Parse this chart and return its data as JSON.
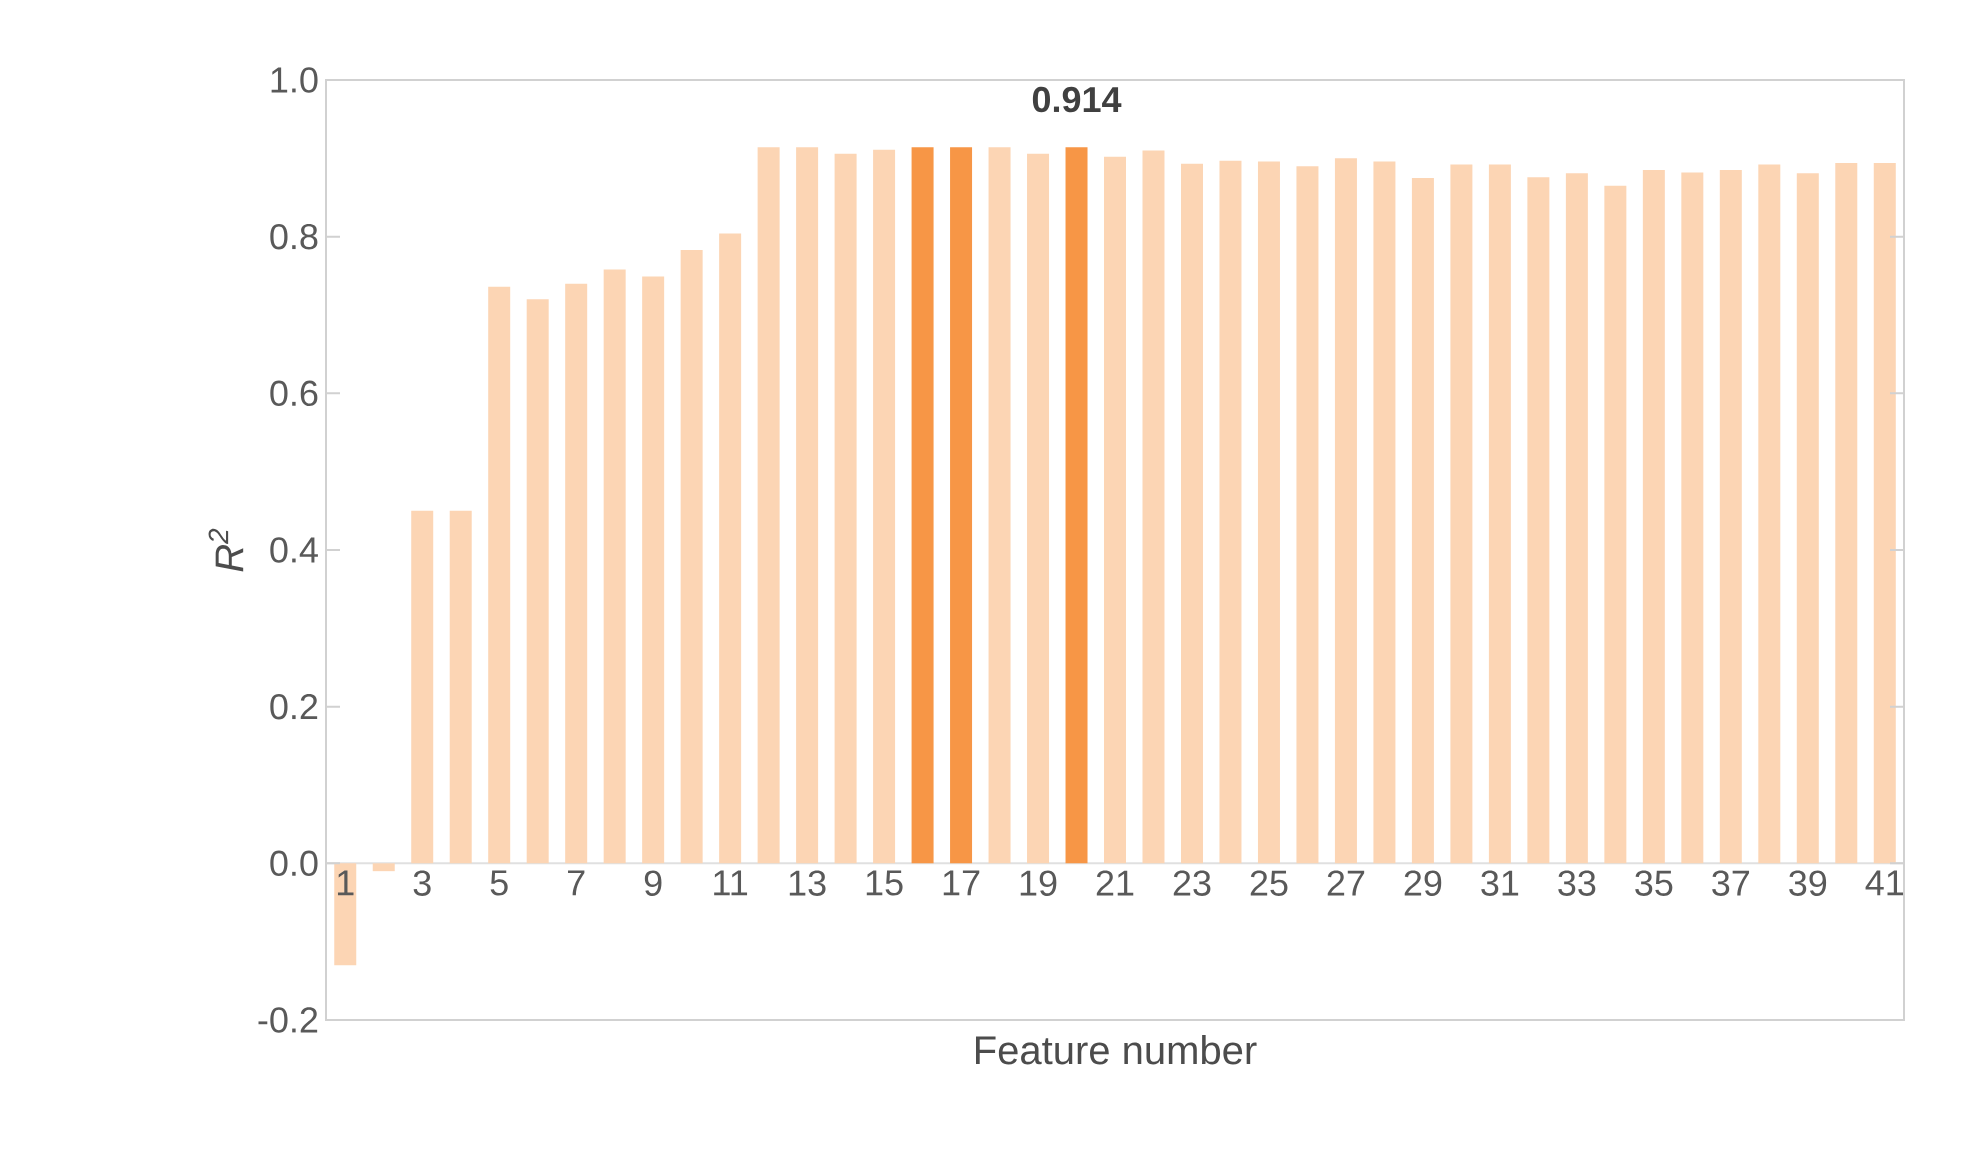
{
  "chart_data": {
    "type": "bar",
    "xlabel": "Feature number",
    "ylabel": "R$^{2}$",
    "categories": [
      "1",
      null,
      "3",
      null,
      "5",
      null,
      "7",
      null,
      "9",
      null,
      "11",
      null,
      "13",
      null,
      "15",
      null,
      "17",
      null,
      "19",
      null,
      "21",
      null,
      "23",
      null,
      "25",
      null,
      "27",
      null,
      "29",
      null,
      "31",
      null,
      "33",
      null,
      "35",
      null,
      "37",
      null,
      "39",
      null,
      "41"
    ],
    "values": [
      -0.13,
      -0.01,
      0.45,
      0.45,
      0.736,
      0.72,
      0.74,
      0.758,
      0.749,
      0.783,
      0.804,
      0.914,
      0.914,
      0.906,
      0.911,
      0.914,
      0.914,
      0.914,
      0.906,
      0.914,
      0.902,
      0.91,
      0.893,
      0.897,
      0.896,
      0.89,
      0.9,
      0.896,
      0.875,
      0.892,
      0.892,
      0.876,
      0.881,
      0.865,
      0.885,
      0.882,
      0.885,
      0.892,
      0.881,
      0.894,
      0.894
    ],
    "colors": [
      "#fcd5b4",
      "#fcd5b4",
      "#fcd5b4",
      "#fcd5b4",
      "#fcd5b4",
      "#fcd5b4",
      "#fcd5b4",
      "#fcd5b4",
      "#fcd5b4",
      "#fcd5b4",
      "#fcd5b4",
      "#fcd5b4",
      "#fcd5b4",
      "#fcd5b4",
      "#fcd5b4",
      "#f79646",
      "#f79646",
      "#fcd5b4",
      "#fcd5b4",
      "#f79646",
      "#fcd5b4",
      "#fcd5b4",
      "#fcd5b4",
      "#fcd5b4",
      "#fcd5b4",
      "#fcd5b4",
      "#fcd5b4",
      "#fcd5b4",
      "#fcd5b4",
      "#fcd5b4",
      "#fcd5b4",
      "#fcd5b4",
      "#fcd5b4",
      "#fcd5b4",
      "#fcd5b4",
      "#fcd5b4",
      "#fcd5b4",
      "#fcd5b4",
      "#fcd5b4",
      "#fcd5b4",
      "#fcd5b4"
    ],
    "value_labels": [
      null,
      null,
      null,
      null,
      null,
      null,
      null,
      null,
      null,
      null,
      null,
      null,
      null,
      null,
      null,
      null,
      null,
      null,
      null,
      "0.914",
      null,
      null,
      null,
      null,
      null,
      null,
      null,
      null,
      null,
      null,
      null,
      null,
      null,
      null,
      null,
      null,
      null,
      null,
      null,
      null,
      null
    ],
    "ylim": [
      -0.2,
      1.0
    ],
    "yticks": [
      {
        "value": -0.2,
        "label": "-0.2"
      },
      {
        "value": 0,
        "label": "0.0"
      },
      {
        "value": 0.2,
        "label": "0.2"
      },
      {
        "value": 0.4,
        "label": "0.4"
      },
      {
        "value": 0.6,
        "label": "0.6"
      },
      {
        "value": 0.8,
        "label": "0.8"
      },
      {
        "value": 1.0,
        "label": "1.0"
      }
    ],
    "grid": false
  }
}
